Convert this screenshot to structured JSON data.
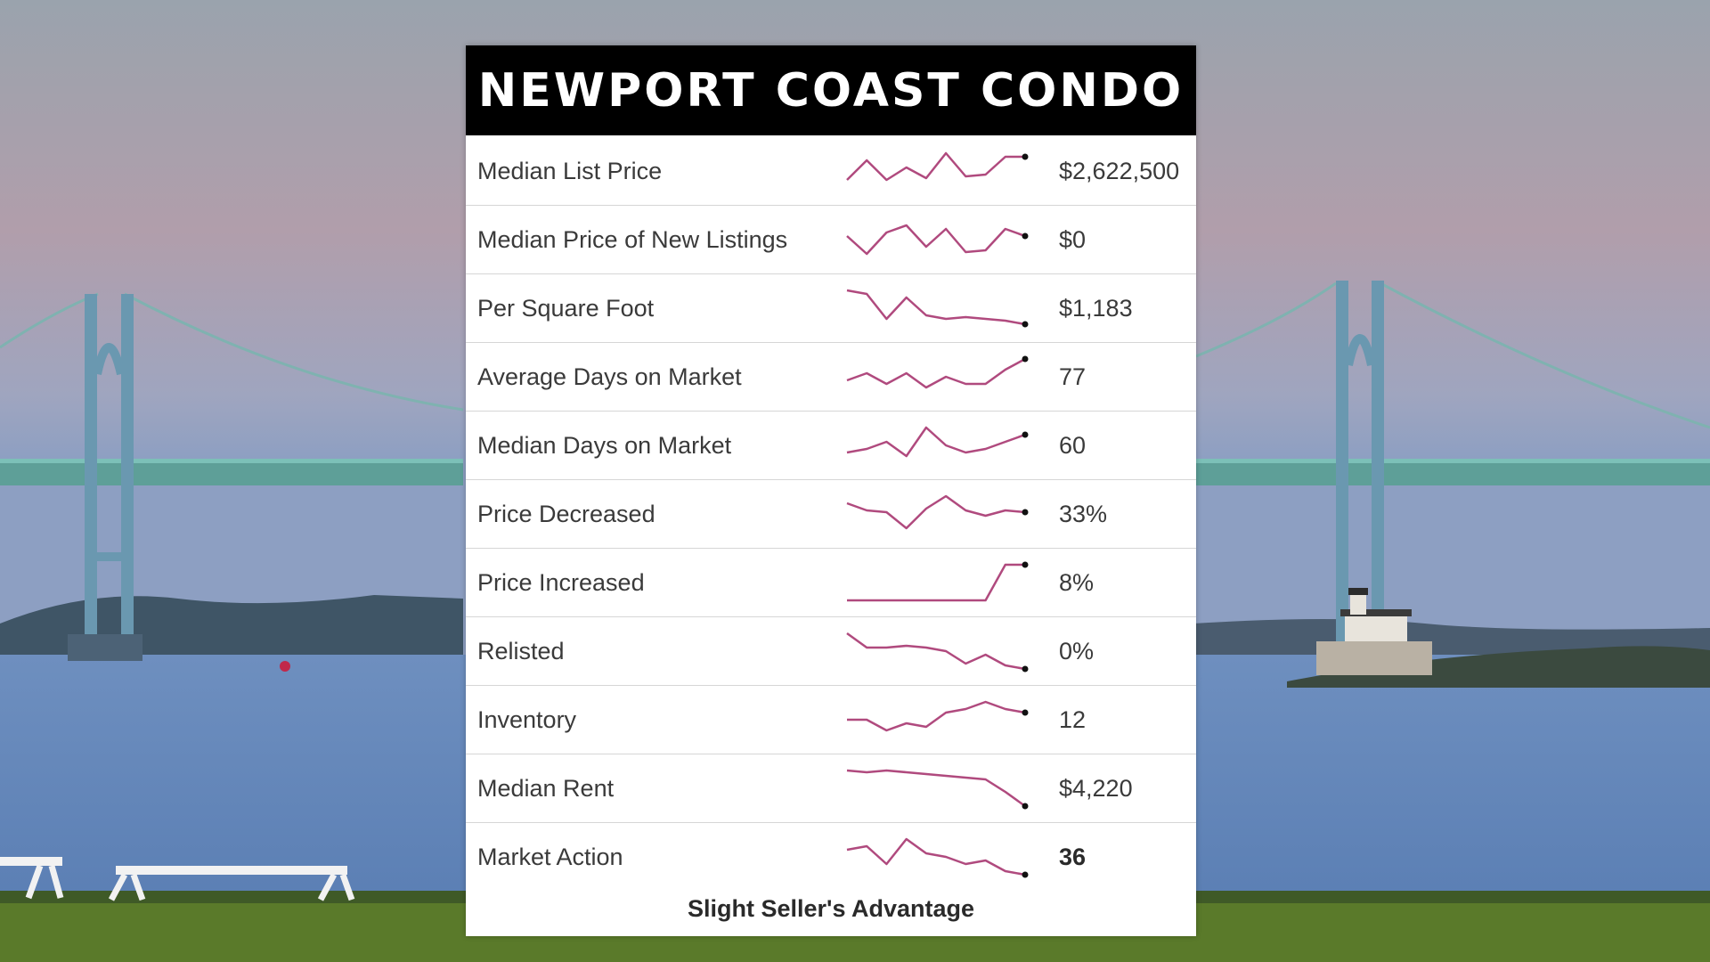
{
  "title": "NEWPORT COAST CONDO",
  "rows": [
    {
      "label": "Median List Price",
      "value": "$2,622,500",
      "bold": false,
      "trend": [
        0.75,
        0.2,
        0.75,
        0.4,
        0.7,
        0.0,
        0.65,
        0.6,
        0.1,
        0.1
      ]
    },
    {
      "label": "Median Price of New Listings",
      "value": "$0",
      "bold": false,
      "trend": [
        0.4,
        0.9,
        0.3,
        0.1,
        0.7,
        0.2,
        0.85,
        0.8,
        0.2,
        0.4
      ]
    },
    {
      "label": "Per Square Foot",
      "value": "$1,183",
      "bold": false,
      "trend": [
        0.0,
        0.1,
        0.8,
        0.2,
        0.7,
        0.8,
        0.75,
        0.8,
        0.85,
        0.95
      ]
    },
    {
      "label": "Average Days on Market",
      "value": "77",
      "bold": false,
      "trend": [
        0.6,
        0.4,
        0.7,
        0.4,
        0.8,
        0.5,
        0.7,
        0.7,
        0.3,
        0.0
      ]
    },
    {
      "label": "Median Days on Market",
      "value": "60",
      "bold": false,
      "trend": [
        0.7,
        0.6,
        0.4,
        0.8,
        0.0,
        0.5,
        0.7,
        0.6,
        0.4,
        0.2
      ]
    },
    {
      "label": "Price Decreased",
      "value": "33%",
      "bold": false,
      "trend": [
        0.2,
        0.4,
        0.45,
        0.9,
        0.35,
        0.0,
        0.4,
        0.55,
        0.4,
        0.45
      ]
    },
    {
      "label": "Price Increased",
      "value": "8%",
      "bold": false,
      "trend": [
        1.0,
        1.0,
        1.0,
        1.0,
        1.0,
        1.0,
        1.0,
        1.0,
        0.0,
        0.0
      ]
    },
    {
      "label": "Relisted",
      "value": "0%",
      "bold": false,
      "trend": [
        0.0,
        0.4,
        0.4,
        0.35,
        0.4,
        0.5,
        0.85,
        0.6,
        0.9,
        1.0
      ]
    },
    {
      "label": "Inventory",
      "value": "12",
      "bold": false,
      "trend": [
        0.5,
        0.5,
        0.8,
        0.6,
        0.7,
        0.3,
        0.2,
        0.0,
        0.2,
        0.3
      ]
    },
    {
      "label": "Median Rent",
      "value": "$4,220",
      "bold": false,
      "trend": [
        0.0,
        0.05,
        0.0,
        0.05,
        0.1,
        0.15,
        0.2,
        0.25,
        0.6,
        1.0
      ]
    },
    {
      "label": "Market Action",
      "value": "36",
      "bold": true,
      "trend": [
        0.3,
        0.2,
        0.7,
        0.0,
        0.4,
        0.5,
        0.7,
        0.6,
        0.9,
        1.0
      ]
    }
  ],
  "footer": "Slight Seller's Advantage",
  "colors": {
    "sparkline": "#b04a7e",
    "endpoint": "#111111",
    "header_bg": "#000000",
    "header_text": "#ffffff"
  },
  "icons": [
    "suspension-bridge-image",
    "lighthouse-image"
  ]
}
